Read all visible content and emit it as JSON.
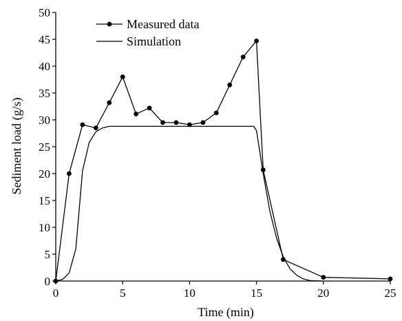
{
  "chart_data": {
    "type": "line",
    "xlabel": "Time (min)",
    "ylabel": "Sediment load (g/s)",
    "xlim": [
      0,
      25
    ],
    "ylim": [
      0,
      50
    ],
    "xticks": [
      0,
      5,
      10,
      15,
      20,
      25
    ],
    "yticks": [
      0,
      5,
      10,
      15,
      20,
      25,
      30,
      35,
      40,
      45,
      50
    ],
    "grid": false,
    "legend_position": "top-left",
    "series": [
      {
        "name": "Measured data",
        "style": "line-markers",
        "color": "#000000",
        "x": [
          0,
          1,
          2,
          3,
          4,
          5,
          6,
          7,
          8,
          9,
          10,
          11,
          12,
          13,
          14,
          15,
          15.5,
          17,
          20,
          25
        ],
        "y": [
          0,
          20,
          29.1,
          28.5,
          33.2,
          38,
          31.1,
          32.2,
          29.5,
          29.5,
          29.1,
          29.5,
          31.3,
          36.5,
          41.7,
          44.7,
          20.7,
          4,
          0.7,
          0.4
        ]
      },
      {
        "name": "Simulation",
        "style": "line",
        "color": "#000000",
        "x": [
          0,
          0.5,
          1,
          1.5,
          2,
          2.5,
          3,
          3.5,
          4,
          5,
          10,
          14.8,
          15,
          15.5,
          16,
          16.5,
          17,
          17.5,
          18,
          18.5,
          19,
          20
        ],
        "y": [
          0,
          0.3,
          1.5,
          6,
          20.5,
          25.8,
          27.8,
          28.5,
          28.8,
          28.8,
          28.8,
          28.8,
          28,
          20,
          13,
          8,
          4.5,
          2.3,
          1.1,
          0.4,
          0.1,
          0
        ]
      }
    ]
  }
}
